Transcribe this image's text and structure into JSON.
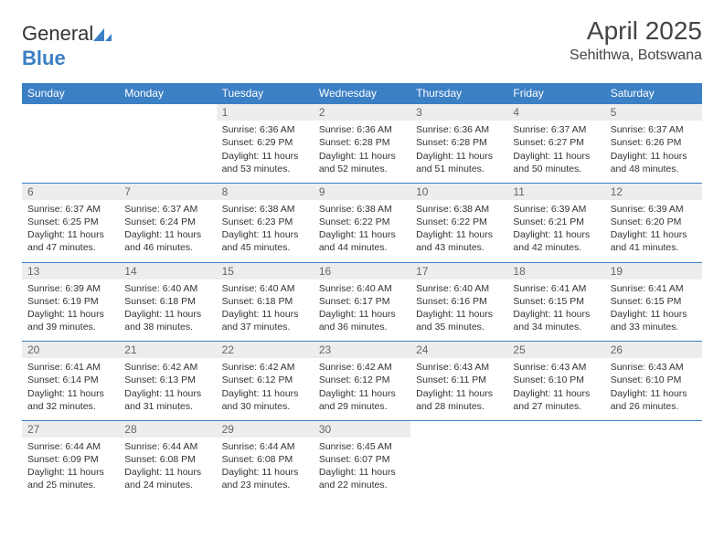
{
  "brand": {
    "part1": "General",
    "part2": "Blue"
  },
  "title": "April 2025",
  "location": "Sehithwa, Botswana",
  "colors": {
    "header_bg": "#3b7fc4",
    "header_text": "#ffffff",
    "daynum_bg": "#ededed",
    "daynum_text": "#666666",
    "body_text": "#333333",
    "page_bg": "#ffffff",
    "border": "#3b7fc4"
  },
  "day_names": [
    "Sunday",
    "Monday",
    "Tuesday",
    "Wednesday",
    "Thursday",
    "Friday",
    "Saturday"
  ],
  "weeks": [
    [
      null,
      null,
      {
        "n": "1",
        "sr": "6:36 AM",
        "ss": "6:29 PM",
        "dl": "11 hours and 53 minutes."
      },
      {
        "n": "2",
        "sr": "6:36 AM",
        "ss": "6:28 PM",
        "dl": "11 hours and 52 minutes."
      },
      {
        "n": "3",
        "sr": "6:36 AM",
        "ss": "6:28 PM",
        "dl": "11 hours and 51 minutes."
      },
      {
        "n": "4",
        "sr": "6:37 AM",
        "ss": "6:27 PM",
        "dl": "11 hours and 50 minutes."
      },
      {
        "n": "5",
        "sr": "6:37 AM",
        "ss": "6:26 PM",
        "dl": "11 hours and 48 minutes."
      }
    ],
    [
      {
        "n": "6",
        "sr": "6:37 AM",
        "ss": "6:25 PM",
        "dl": "11 hours and 47 minutes."
      },
      {
        "n": "7",
        "sr": "6:37 AM",
        "ss": "6:24 PM",
        "dl": "11 hours and 46 minutes."
      },
      {
        "n": "8",
        "sr": "6:38 AM",
        "ss": "6:23 PM",
        "dl": "11 hours and 45 minutes."
      },
      {
        "n": "9",
        "sr": "6:38 AM",
        "ss": "6:22 PM",
        "dl": "11 hours and 44 minutes."
      },
      {
        "n": "10",
        "sr": "6:38 AM",
        "ss": "6:22 PM",
        "dl": "11 hours and 43 minutes."
      },
      {
        "n": "11",
        "sr": "6:39 AM",
        "ss": "6:21 PM",
        "dl": "11 hours and 42 minutes."
      },
      {
        "n": "12",
        "sr": "6:39 AM",
        "ss": "6:20 PM",
        "dl": "11 hours and 41 minutes."
      }
    ],
    [
      {
        "n": "13",
        "sr": "6:39 AM",
        "ss": "6:19 PM",
        "dl": "11 hours and 39 minutes."
      },
      {
        "n": "14",
        "sr": "6:40 AM",
        "ss": "6:18 PM",
        "dl": "11 hours and 38 minutes."
      },
      {
        "n": "15",
        "sr": "6:40 AM",
        "ss": "6:18 PM",
        "dl": "11 hours and 37 minutes."
      },
      {
        "n": "16",
        "sr": "6:40 AM",
        "ss": "6:17 PM",
        "dl": "11 hours and 36 minutes."
      },
      {
        "n": "17",
        "sr": "6:40 AM",
        "ss": "6:16 PM",
        "dl": "11 hours and 35 minutes."
      },
      {
        "n": "18",
        "sr": "6:41 AM",
        "ss": "6:15 PM",
        "dl": "11 hours and 34 minutes."
      },
      {
        "n": "19",
        "sr": "6:41 AM",
        "ss": "6:15 PM",
        "dl": "11 hours and 33 minutes."
      }
    ],
    [
      {
        "n": "20",
        "sr": "6:41 AM",
        "ss": "6:14 PM",
        "dl": "11 hours and 32 minutes."
      },
      {
        "n": "21",
        "sr": "6:42 AM",
        "ss": "6:13 PM",
        "dl": "11 hours and 31 minutes."
      },
      {
        "n": "22",
        "sr": "6:42 AM",
        "ss": "6:12 PM",
        "dl": "11 hours and 30 minutes."
      },
      {
        "n": "23",
        "sr": "6:42 AM",
        "ss": "6:12 PM",
        "dl": "11 hours and 29 minutes."
      },
      {
        "n": "24",
        "sr": "6:43 AM",
        "ss": "6:11 PM",
        "dl": "11 hours and 28 minutes."
      },
      {
        "n": "25",
        "sr": "6:43 AM",
        "ss": "6:10 PM",
        "dl": "11 hours and 27 minutes."
      },
      {
        "n": "26",
        "sr": "6:43 AM",
        "ss": "6:10 PM",
        "dl": "11 hours and 26 minutes."
      }
    ],
    [
      {
        "n": "27",
        "sr": "6:44 AM",
        "ss": "6:09 PM",
        "dl": "11 hours and 25 minutes."
      },
      {
        "n": "28",
        "sr": "6:44 AM",
        "ss": "6:08 PM",
        "dl": "11 hours and 24 minutes."
      },
      {
        "n": "29",
        "sr": "6:44 AM",
        "ss": "6:08 PM",
        "dl": "11 hours and 23 minutes."
      },
      {
        "n": "30",
        "sr": "6:45 AM",
        "ss": "6:07 PM",
        "dl": "11 hours and 22 minutes."
      },
      null,
      null,
      null
    ]
  ],
  "labels": {
    "sunrise": "Sunrise: ",
    "sunset": "Sunset: ",
    "daylight": "Daylight: "
  }
}
